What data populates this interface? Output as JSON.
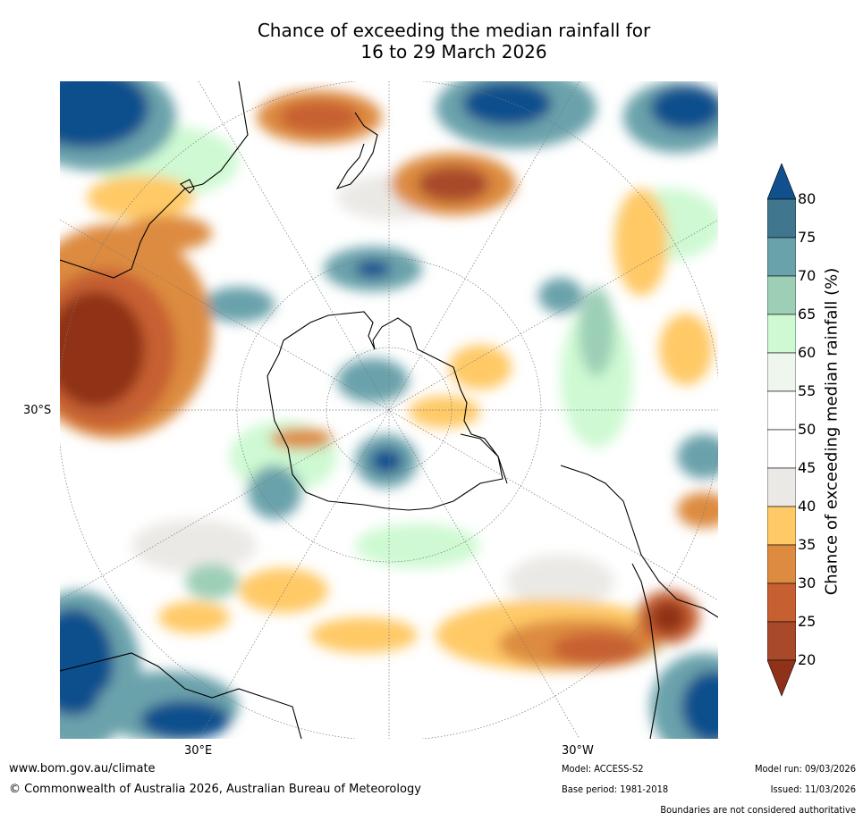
{
  "title_line1": "Chance of exceeding the median rainfall for",
  "title_line2": "16 to 29 March 2026",
  "map": {
    "graticule_labels": {
      "lat_30s": "30°S",
      "lon_30e": "30°E",
      "lon_30w": "30°W"
    },
    "colors": {
      "blue_high": "#10508d",
      "teal": "#6aa2ab",
      "green_light": "#cef9d2",
      "grey": "#ebe9e5",
      "orange": "#ffc966",
      "brown": "#c0582e",
      "dark_brown": "#8f3219",
      "continent_outline": "#000000"
    }
  },
  "colorbar": {
    "title": "Chance of exceeding median rainfall (%)",
    "ticks": [
      "20",
      "25",
      "30",
      "35",
      "40",
      "45",
      "50",
      "55",
      "60",
      "65",
      "70",
      "75",
      "80"
    ],
    "colors": [
      "#8f3219",
      "#a8492a",
      "#c76030",
      "#dd8b40",
      "#ffc966",
      "#ebe9e5",
      "#ffffff",
      "#ffffff",
      "#eef6ee",
      "#cef9d2",
      "#9ccfb6",
      "#6aa2ab",
      "#40778f",
      "#10508d"
    ]
  },
  "footer": {
    "website": "www.bom.gov.au/climate",
    "copyright": "© Commonwealth of Australia 2026, Australian Bureau of Meteorology",
    "model": "Model: ACCESS-S2",
    "base_period": "Base period: 1981-2018",
    "model_run": "Model run: 09/03/2026",
    "issued": "Issued: 11/03/2026",
    "disclaimer": "Boundaries are not considered authoritative"
  }
}
